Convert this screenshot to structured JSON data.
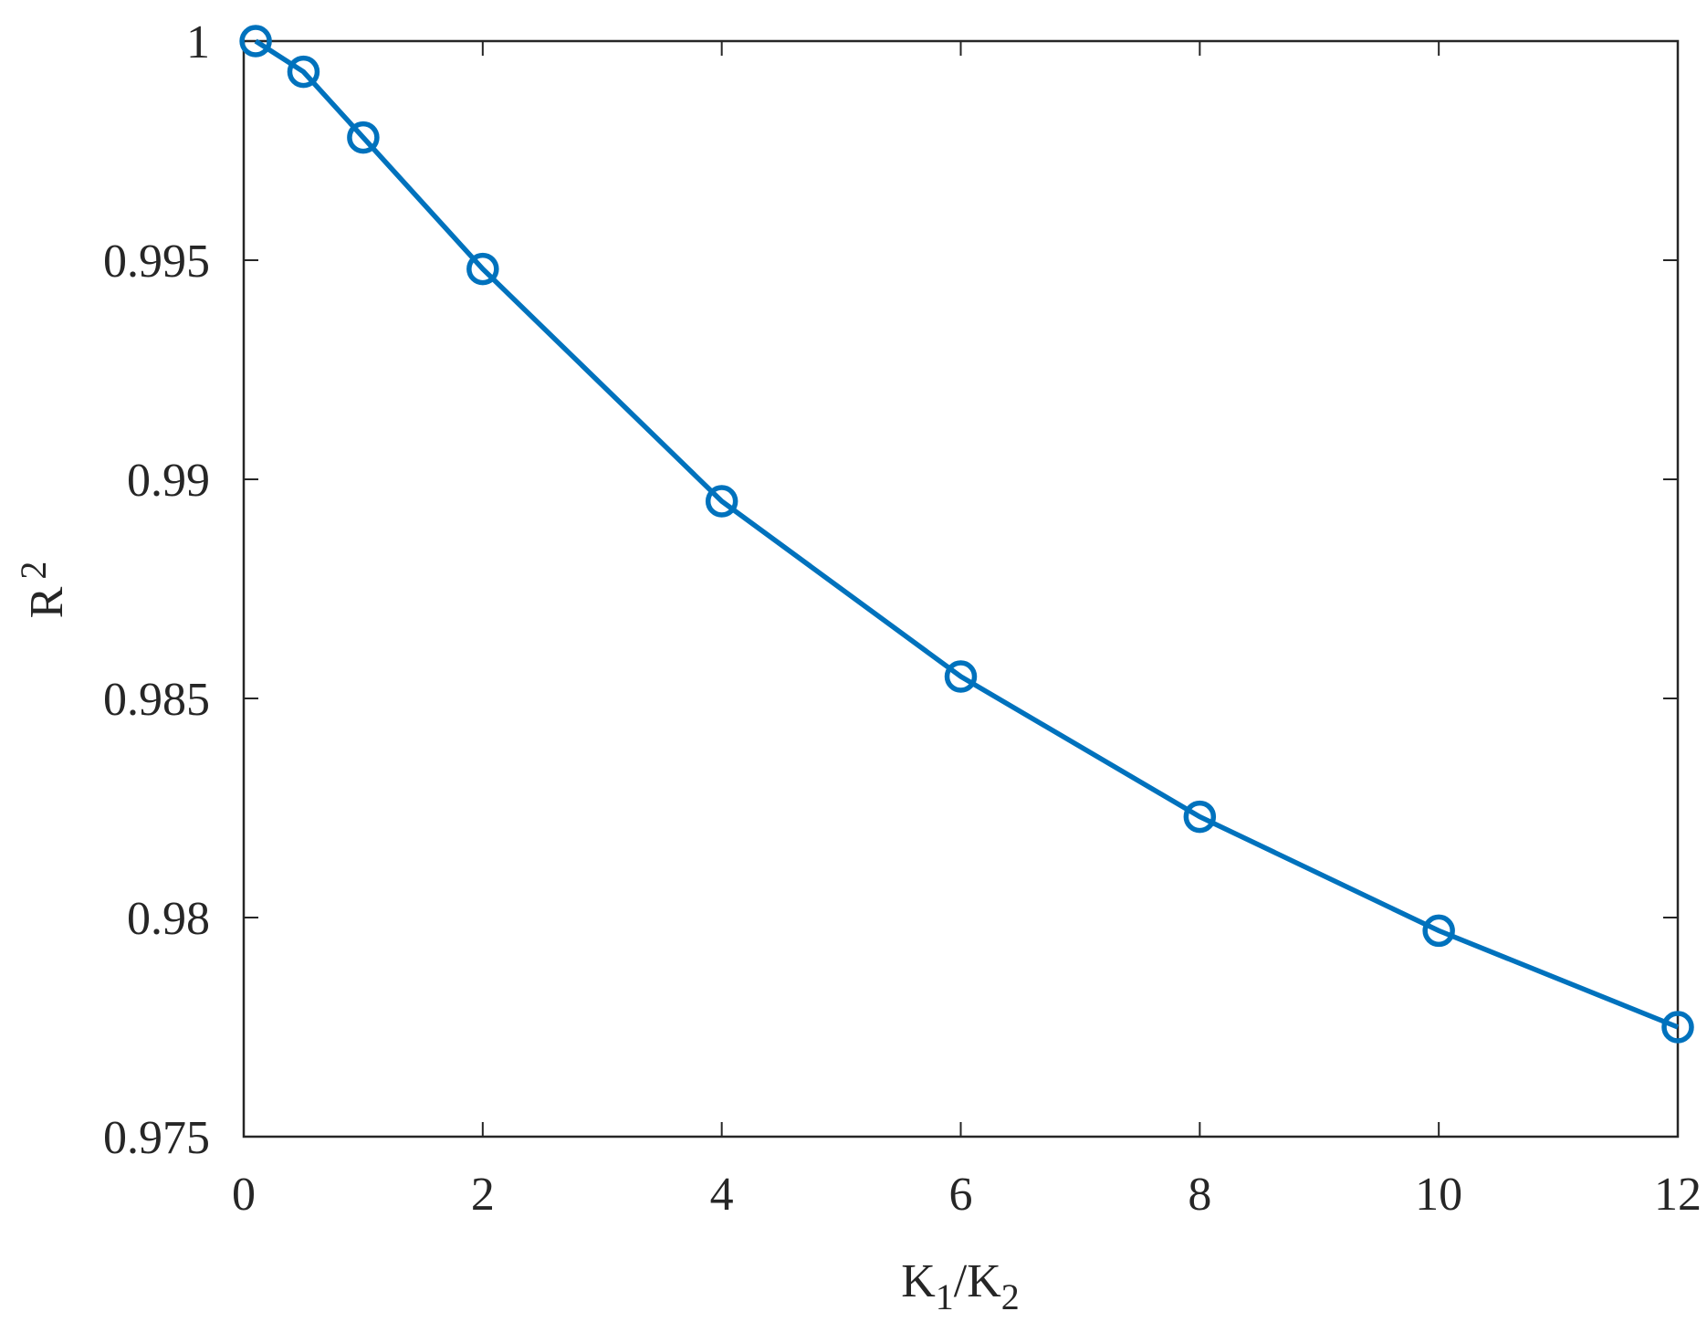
{
  "chart_data": {
    "type": "line",
    "xlabel": [
      "K",
      "1",
      "/K",
      "2"
    ],
    "ylabel": [
      "R",
      "2"
    ],
    "x": [
      0.1,
      0.5,
      1,
      2,
      4,
      6,
      8,
      10,
      12
    ],
    "series": [
      {
        "color": "#0072bd",
        "values": [
          1.0,
          0.9993,
          0.9978,
          0.9948,
          0.9895,
          0.9855,
          0.9823,
          0.9797,
          0.9775
        ]
      }
    ],
    "xlim": [
      0,
      12
    ],
    "xticks": [
      0,
      2,
      4,
      6,
      8,
      10,
      12
    ],
    "ylim": [
      0.975,
      1
    ],
    "yticks": [
      0.975,
      0.98,
      0.985,
      0.99,
      0.995,
      1
    ],
    "grid": false,
    "marker": "circle"
  }
}
